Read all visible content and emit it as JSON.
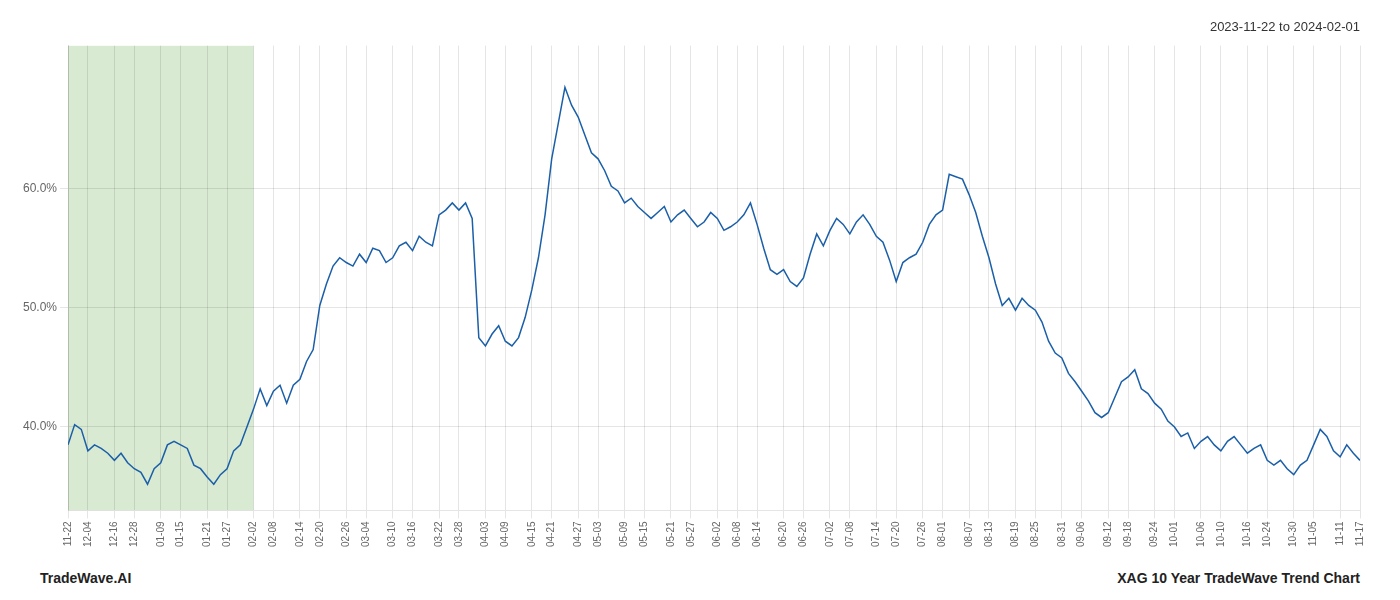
{
  "chart_data": {
    "type": "line",
    "title": "2023-11-22 to 2024-02-01",
    "annotations": [
      "TradeWave.AI",
      "XAG 10 Year TradeWave Trend Chart"
    ],
    "categories": [
      "11-22",
      null,
      null,
      "12-04",
      null,
      null,
      null,
      "12-16",
      null,
      null,
      "12-28",
      null,
      null,
      null,
      "01-09",
      null,
      null,
      "01-15",
      null,
      null,
      null,
      "01-21",
      null,
      null,
      "01-27",
      null,
      null,
      null,
      "02-02",
      null,
      null,
      "02-08",
      null,
      null,
      null,
      "02-14",
      null,
      null,
      "02-20",
      null,
      null,
      null,
      "02-26",
      null,
      null,
      "03-04",
      null,
      null,
      null,
      "03-10",
      null,
      null,
      "03-16",
      null,
      null,
      null,
      "03-22",
      null,
      null,
      "03-28",
      null,
      null,
      null,
      "04-03",
      null,
      null,
      "04-09",
      null,
      null,
      null,
      "04-15",
      null,
      null,
      "04-21",
      null,
      null,
      null,
      "04-27",
      null,
      null,
      "05-03",
      null,
      null,
      null,
      "05-09",
      null,
      null,
      "05-15",
      null,
      null,
      null,
      "05-21",
      null,
      null,
      "05-27",
      null,
      null,
      null,
      "06-02",
      null,
      null,
      "06-08",
      null,
      null,
      "06-14",
      null,
      null,
      null,
      "06-20",
      null,
      null,
      "06-26",
      null,
      null,
      null,
      "07-02",
      null,
      null,
      "07-08",
      null,
      null,
      null,
      "07-14",
      null,
      null,
      "07-20",
      null,
      null,
      null,
      "07-26",
      null,
      null,
      "08-01",
      null,
      null,
      null,
      "08-07",
      null,
      null,
      "08-13",
      null,
      null,
      null,
      "08-19",
      null,
      null,
      "08-25",
      null,
      null,
      null,
      "08-31",
      null,
      null,
      "09-06",
      null,
      null,
      null,
      "09-12",
      null,
      null,
      "09-18",
      null,
      null,
      null,
      "09-24",
      null,
      null,
      "10-01",
      null,
      null,
      null,
      "10-06",
      null,
      null,
      "10-10",
      null,
      null,
      null,
      "10-16",
      null,
      null,
      "10-24",
      null,
      null,
      null,
      "10-30",
      null,
      null,
      "11-05",
      null,
      null,
      null,
      "11-11",
      null,
      null,
      "11-17"
    ],
    "values": [
      38.5,
      40.2,
      39.8,
      38.0,
      38.5,
      38.2,
      37.8,
      37.2,
      37.8,
      37.0,
      36.5,
      36.2,
      35.2,
      36.5,
      37.0,
      38.5,
      38.8,
      38.5,
      38.2,
      36.8,
      36.5,
      35.8,
      35.2,
      36.0,
      36.5,
      38.0,
      38.5,
      40.0,
      41.5,
      43.2,
      41.8,
      43.0,
      43.5,
      42.0,
      43.5,
      44.0,
      45.5,
      46.5,
      50.2,
      52.0,
      53.5,
      54.2,
      53.8,
      53.5,
      54.5,
      53.8,
      55.0,
      54.8,
      53.8,
      54.2,
      55.2,
      55.5,
      54.8,
      56.0,
      55.5,
      55.2,
      57.8,
      58.2,
      58.8,
      58.2,
      58.8,
      57.5,
      47.5,
      46.8,
      47.8,
      48.5,
      47.2,
      46.8,
      47.5,
      49.2,
      51.5,
      54.2,
      57.8,
      62.5,
      65.5,
      68.5,
      67.0,
      66.0,
      64.5,
      63.0,
      62.5,
      61.5,
      60.2,
      59.8,
      58.8,
      59.2,
      58.5,
      58.0,
      57.5,
      58.0,
      58.5,
      57.2,
      57.8,
      58.2,
      57.5,
      56.8,
      57.2,
      58.0,
      57.5,
      56.5,
      56.8,
      57.2,
      57.8,
      58.8,
      57.0,
      55.0,
      53.2,
      52.8,
      53.2,
      52.2,
      51.8,
      52.5,
      54.5,
      56.2,
      55.2,
      56.5,
      57.5,
      57.0,
      56.2,
      57.2,
      57.8,
      57.0,
      56.0,
      55.5,
      54.0,
      52.2,
      53.8,
      54.2,
      54.5,
      55.5,
      57.0,
      57.8,
      58.2,
      61.2,
      61.0,
      60.8,
      59.5,
      58.0,
      56.0,
      54.2,
      52.0,
      50.2,
      50.8,
      49.8,
      50.8,
      50.2,
      49.8,
      48.8,
      47.2,
      46.2,
      45.8,
      44.5,
      43.8,
      43.0,
      42.2,
      41.2,
      40.8,
      41.2,
      42.5,
      43.8,
      44.2,
      44.8,
      43.2,
      42.8,
      42.0,
      41.5,
      40.5,
      40.0,
      39.2,
      39.5,
      38.2,
      38.8,
      39.2,
      38.5,
      38.0,
      38.8,
      39.2,
      38.5,
      37.8,
      38.2,
      38.5,
      37.2,
      36.8,
      37.2,
      36.5,
      36.0,
      36.8,
      37.2,
      38.5,
      39.8,
      39.2,
      38.0,
      37.5,
      38.5,
      37.8,
      37.2
    ],
    "color": "#1a5fa8",
    "highlight": {
      "start": "11-22",
      "end": "02-02",
      "color": "#d9ead3"
    },
    "ylim": [
      33,
      72
    ],
    "yticks": [
      {
        "value": 40,
        "label": "40.0%"
      },
      {
        "value": 50,
        "label": "50.0%"
      },
      {
        "value": 60,
        "label": "60.0%"
      }
    ],
    "grid": true
  }
}
